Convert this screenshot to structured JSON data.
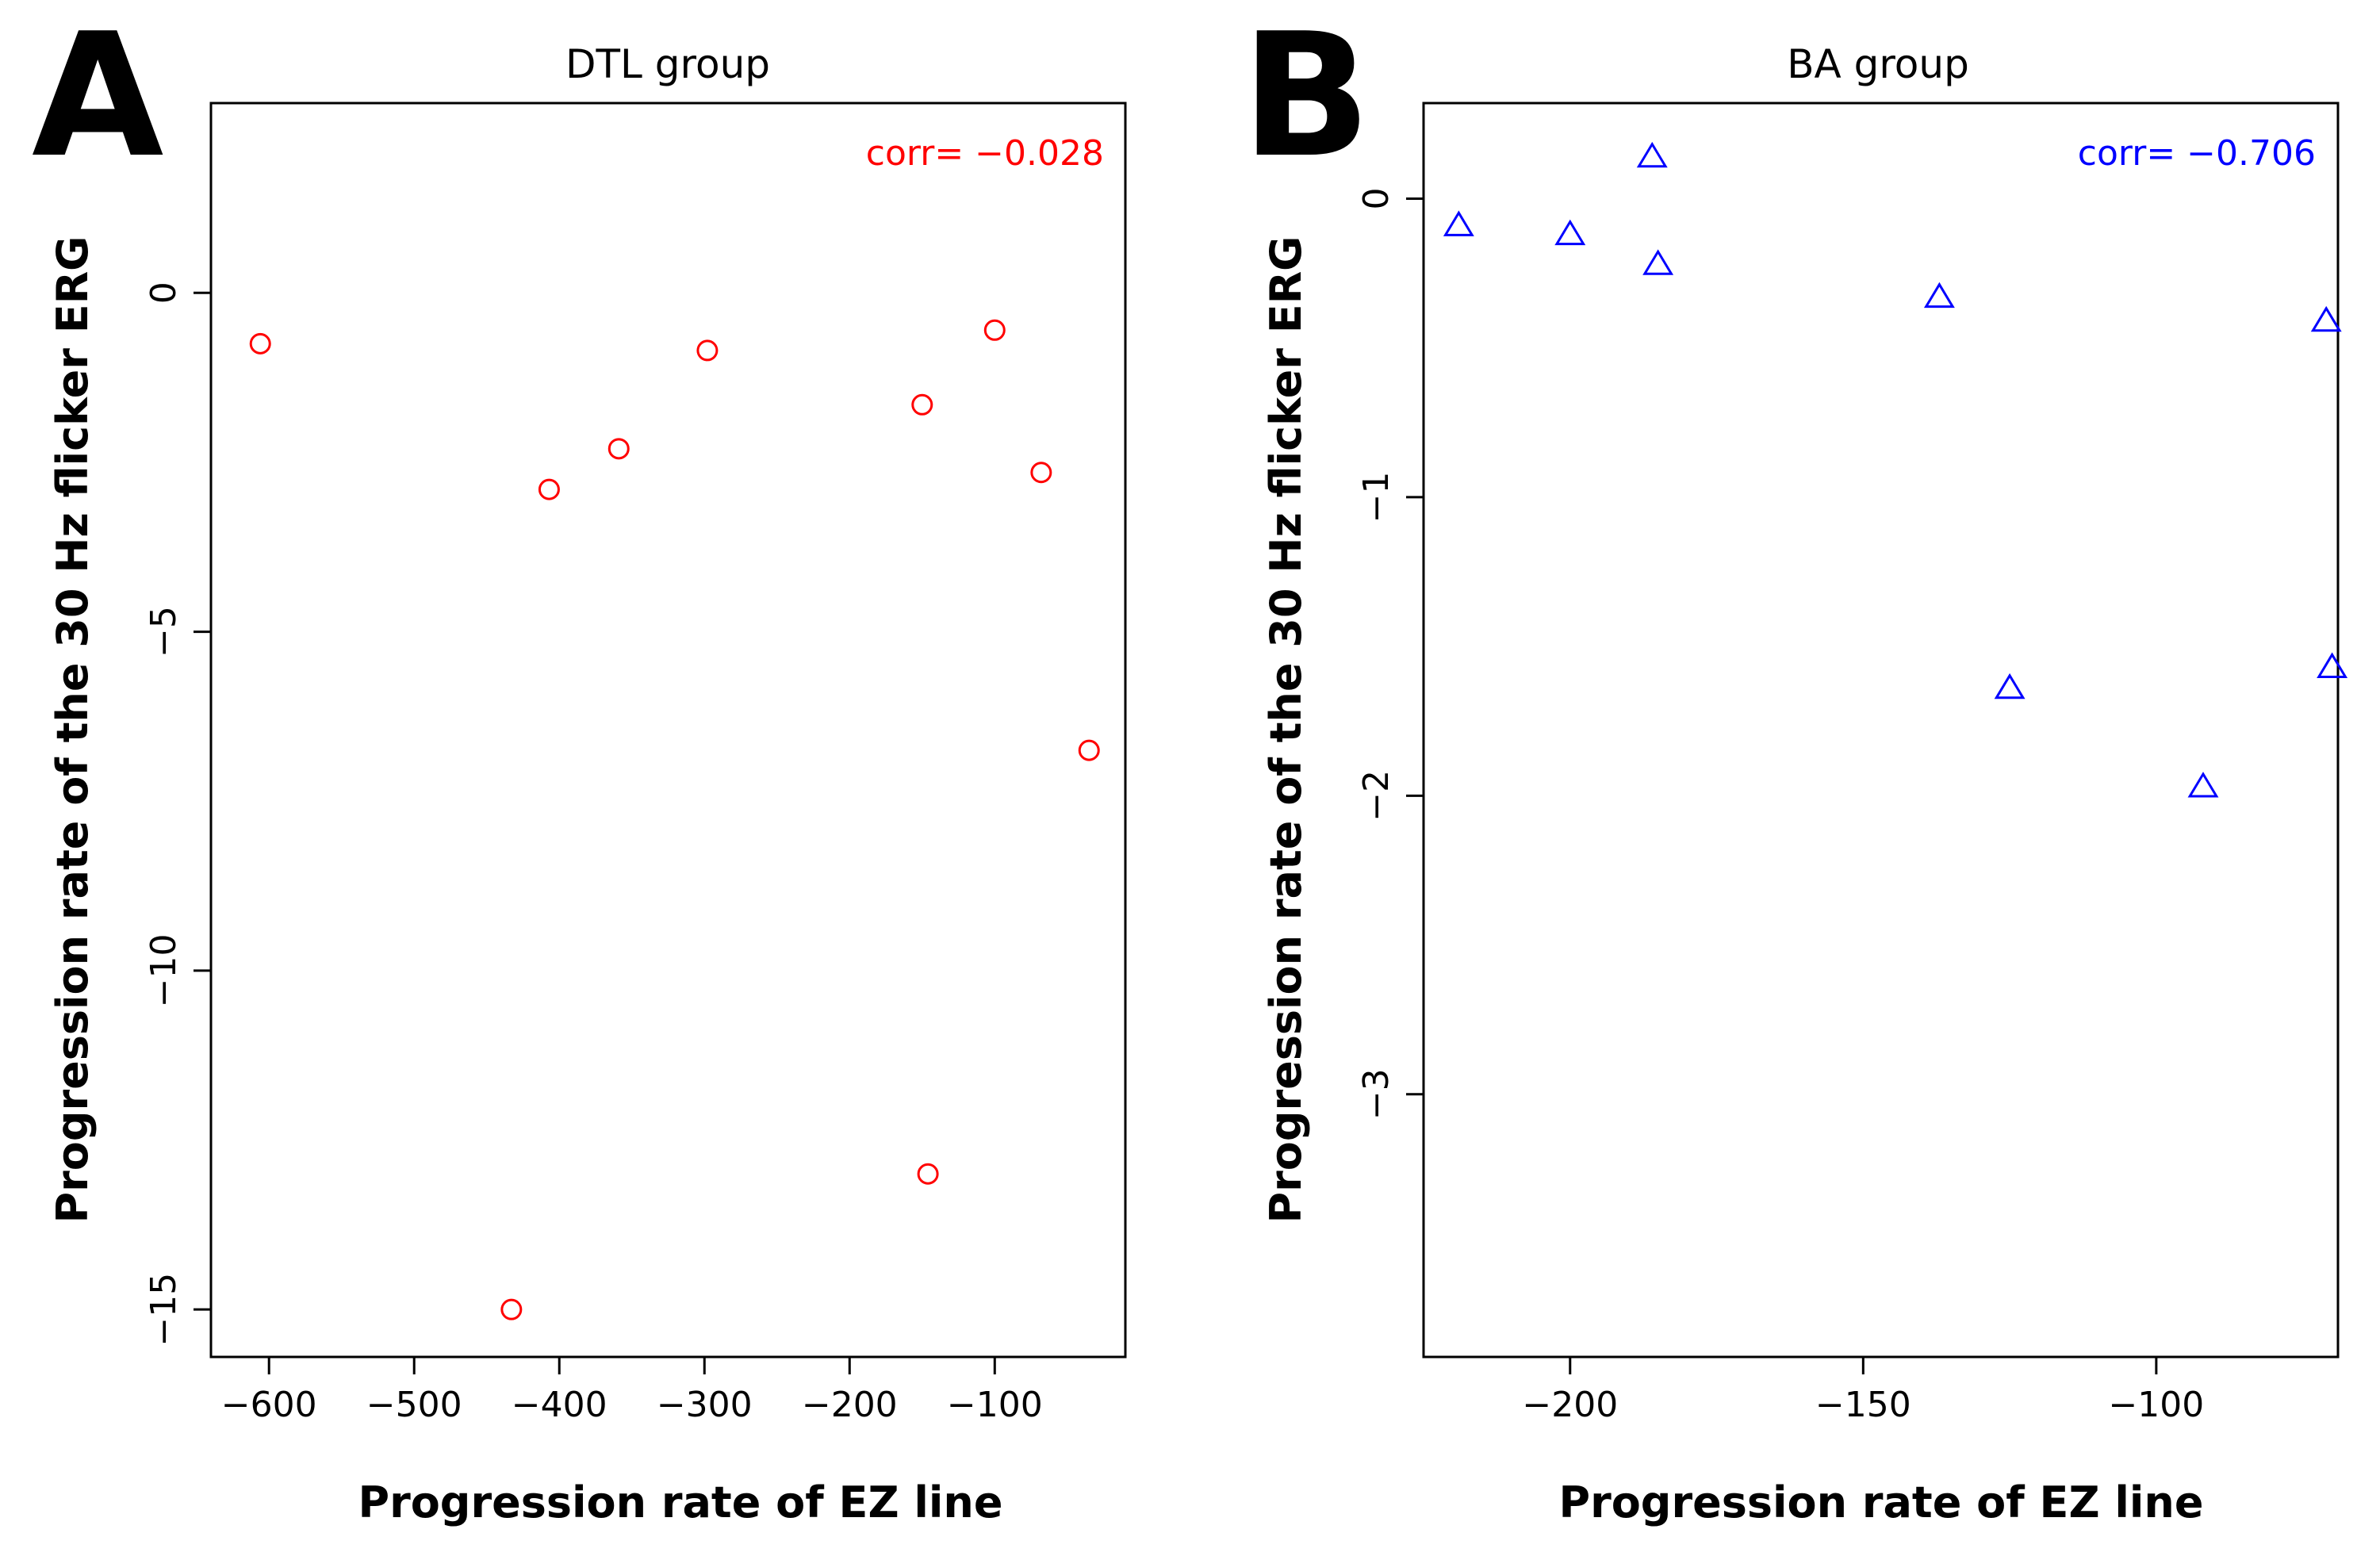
{
  "chart_data": [
    {
      "type": "scatter",
      "panel_label": "A",
      "title": "DTL group",
      "xlabel": "Progression rate of EZ line",
      "ylabel": "Progression rate of the 30 Hz flicker ERG",
      "xlim": [
        -640,
        -10
      ],
      "ylim": [
        -15.7,
        2.8
      ],
      "xticks": [
        -600,
        -500,
        -400,
        -300,
        -200,
        -100
      ],
      "xtick_labels": [
        "−600",
        "−500",
        "−400",
        "−300",
        "−200",
        "−100"
      ],
      "yticks": [
        0,
        -5,
        -10,
        -15
      ],
      "ytick_labels": [
        "0",
        "−5",
        "−10",
        "−15"
      ],
      "annotation": "corr= −0.028",
      "color": "#ff0000",
      "marker": "circle",
      "series": [
        {
          "name": "DTL group",
          "x": [
            -606,
            -407,
            -359,
            -433,
            -298,
            -150,
            -100,
            -68,
            -146,
            -35
          ],
          "y": [
            -0.75,
            -2.9,
            -2.3,
            -15.0,
            -0.85,
            -1.65,
            -0.55,
            -2.65,
            -13.0,
            -6.75
          ]
        }
      ]
    },
    {
      "type": "scatter",
      "panel_label": "B",
      "title": "BA group",
      "xlabel": "Progression rate of EZ line",
      "ylabel": "Progression rate of the 30 Hz flicker ERG",
      "xlim": [
        -225,
        -69
      ],
      "ylim": [
        -3.88,
        0.32
      ],
      "xticks": [
        -200,
        -150,
        -100
      ],
      "xtick_labels": [
        "−200",
        "−150",
        "−100"
      ],
      "yticks": [
        0,
        -1,
        -2,
        -3
      ],
      "ytick_labels": [
        "0",
        "−1",
        "−2",
        "−3"
      ],
      "annotation": "corr= −0.706",
      "color": "#0000ff",
      "marker": "triangle",
      "series": [
        {
          "name": "BA group",
          "x": [
            -219,
            -200,
            -186,
            -185,
            -137,
            -125,
            -92,
            -71,
            -70
          ],
          "y": [
            -0.09,
            -0.12,
            0.14,
            -0.22,
            -0.33,
            -1.64,
            -1.97,
            -0.41,
            -1.57
          ]
        }
      ]
    }
  ]
}
